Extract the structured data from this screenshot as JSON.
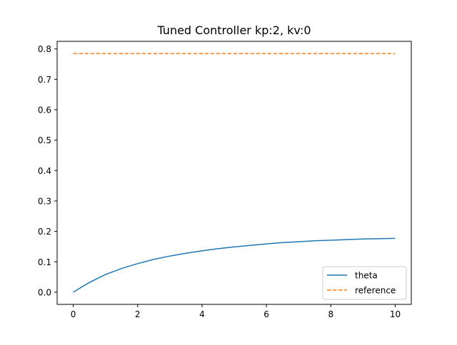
{
  "chart_data": {
    "type": "line",
    "title": "Tuned Controller kp:2, kv:0",
    "xlabel": "",
    "ylabel": "",
    "xlim": [
      -0.5,
      10.5
    ],
    "ylim": [
      -0.04,
      0.825
    ],
    "xticks": [
      0,
      2,
      4,
      6,
      8,
      10
    ],
    "yticks": [
      0.0,
      0.1,
      0.2,
      0.3,
      0.4,
      0.5,
      0.6,
      0.7,
      0.8
    ],
    "xtick_labels": [
      "0",
      "2",
      "4",
      "6",
      "8",
      "10"
    ],
    "ytick_labels": [
      "0.0",
      "0.1",
      "0.2",
      "0.3",
      "0.4",
      "0.5",
      "0.6",
      "0.7",
      "0.8"
    ],
    "grid": false,
    "legend_position": "lower-right",
    "series": [
      {
        "name": "theta",
        "style": "solid",
        "color": "#1f77b4",
        "x": [
          0,
          0.5,
          1,
          1.5,
          2,
          2.5,
          3,
          3.5,
          4,
          4.5,
          5,
          5.5,
          6,
          6.5,
          7,
          7.5,
          8,
          8.5,
          9,
          9.5,
          10
        ],
        "y": [
          0.0,
          0.032,
          0.058,
          0.078,
          0.094,
          0.108,
          0.119,
          0.128,
          0.136,
          0.143,
          0.149,
          0.154,
          0.159,
          0.163,
          0.166,
          0.169,
          0.171,
          0.173,
          0.175,
          0.176,
          0.177
        ]
      },
      {
        "name": "reference",
        "style": "dashed",
        "color": "#ff7f0e",
        "x": [
          0,
          10
        ],
        "y": [
          0.785,
          0.785
        ]
      }
    ]
  }
}
